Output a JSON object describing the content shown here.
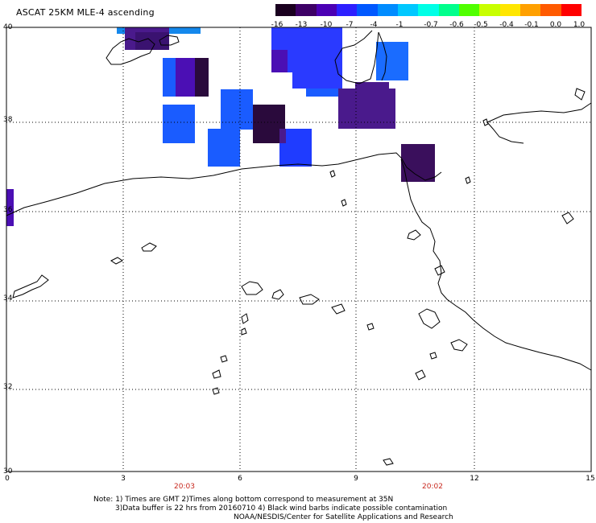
{
  "title": "ASCAT 25KM MLE-4 ascending",
  "colorbar": {
    "labels": [
      "-16",
      "-13",
      "-10",
      "-7",
      "-4",
      "-1",
      "-0.7",
      "-0.6",
      "-0.5",
      "-0.4",
      "-0.1",
      "0.0",
      "1.0"
    ],
    "colors": [
      "#1a001f",
      "#3d0066",
      "#4b00b4",
      "#2d1fff",
      "#0058ff",
      "#008cff",
      "#00c8ff",
      "#00ffe6",
      "#00ff8c",
      "#50ff00",
      "#c8ff00",
      "#ffe600",
      "#ffa000",
      "#ff5a00",
      "#ff0000"
    ]
  },
  "axes": {
    "lat_labels": [
      "40",
      "38",
      "36",
      "34",
      "32",
      "30"
    ],
    "lon_labels": [
      "0",
      "3",
      "6",
      "9",
      "12",
      "15"
    ]
  },
  "times": [
    "20:03",
    "20:02"
  ],
  "notes": {
    "line1": "Note: 1) Times are GMT 2)Times along bottom correspond to measurement at 35N",
    "line2": "3)Data buffer is 22 hrs from 20160710 4) Black wind barbs indicate possible contamination",
    "line3": "NOAA/NESDIS/Center for Satellite Applications and Research"
  },
  "colors": {
    "very_dark_purple": "#2a0a3c",
    "purple": "#4a1a8c",
    "violet": "#4b0fb4",
    "blue": "#2a3aff",
    "bright_blue": "#1a5cff",
    "sky_blue": "#0a8cf0"
  }
}
